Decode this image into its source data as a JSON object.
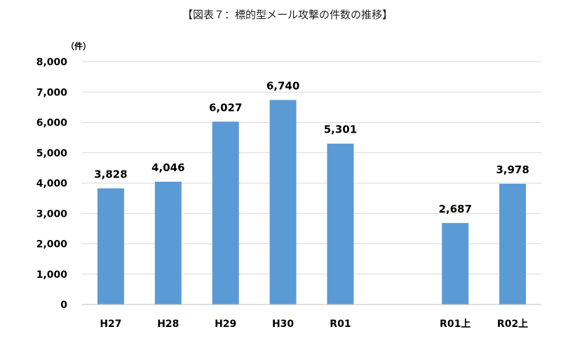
{
  "chart_data": {
    "type": "bar",
    "title": "【図表７：標的型メール攻撃の件数の推移】",
    "ylabel": "（件）",
    "xlabel": "",
    "ylim": [
      0,
      8000
    ],
    "yticks": [
      0,
      1000,
      2000,
      3000,
      4000,
      5000,
      6000,
      7000,
      8000
    ],
    "ytick_labels": [
      "0",
      "1,000",
      "2,000",
      "3,000",
      "4,000",
      "5,000",
      "6,000",
      "7,000",
      "8,000"
    ],
    "categories": [
      "H27",
      "H28",
      "H29",
      "H30",
      "R01",
      "",
      "R01上",
      "R02上"
    ],
    "values": [
      3828,
      4046,
      6027,
      6740,
      5301,
      null,
      2687,
      3978
    ],
    "data_labels": [
      "3,828",
      "4,046",
      "6,027",
      "6,740",
      "5,301",
      "",
      "2,687",
      "3,978"
    ],
    "grid": true,
    "legend": "none",
    "bar_color": "#5b9bd5",
    "grid_color": "#d9d9d9"
  }
}
